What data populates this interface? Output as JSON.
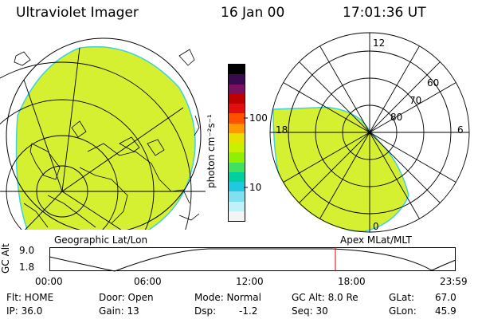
{
  "header": {
    "instrument": "Ultraviolet Imager",
    "date": "16 Jan 00",
    "time": "17:01:36 UT"
  },
  "geographic_panel": {
    "label": "Geographic Lat/Lon"
  },
  "apex_panel": {
    "label": "Apex MLat/MLT",
    "mlt_labels": [
      "12",
      "18",
      "6",
      "0"
    ],
    "mlat_labels": [
      "60",
      "70",
      "80"
    ]
  },
  "colorbar": {
    "unit_label": "photon cm⁻²s⁻¹",
    "ticks": [
      "100",
      "10"
    ],
    "colors": [
      "#000000",
      "#3a0a50",
      "#7a1060",
      "#c00000",
      "#e01010",
      "#ff5000",
      "#ff9900",
      "#e8e000",
      "#c8f000",
      "#90f000",
      "#40e060",
      "#00d0a0",
      "#20c8e0",
      "#80e0f0",
      "#c0f0f8",
      "#f4f4f4"
    ]
  },
  "altitude_plot": {
    "y_axis_label": "GC Alt",
    "y_ticks": [
      "9.0",
      "1.8"
    ],
    "x_ticks": [
      "00:00",
      "06:00",
      "12:00",
      "18:00",
      "23:59"
    ],
    "current_time_color": "#e00000"
  },
  "info": {
    "flt": "Flt: HOME",
    "ip": "IP: 36.0",
    "door": "Door: Open",
    "gain": "Gain: 13",
    "mode": "Mode: Normal",
    "dsp": "Dsp:",
    "dsp_value": "-1.2",
    "gc_alt": "GC Alt: 8.0 Re",
    "seq": "Seq: 30",
    "glat": "GLat:",
    "glat_value": "67.0",
    "glon": "GLon:",
    "glon_value": "45.9"
  },
  "colors": {
    "aurora_fill": "#d4f030",
    "aurora_edge": "#40d0e0",
    "map_lines": "#000000"
  }
}
